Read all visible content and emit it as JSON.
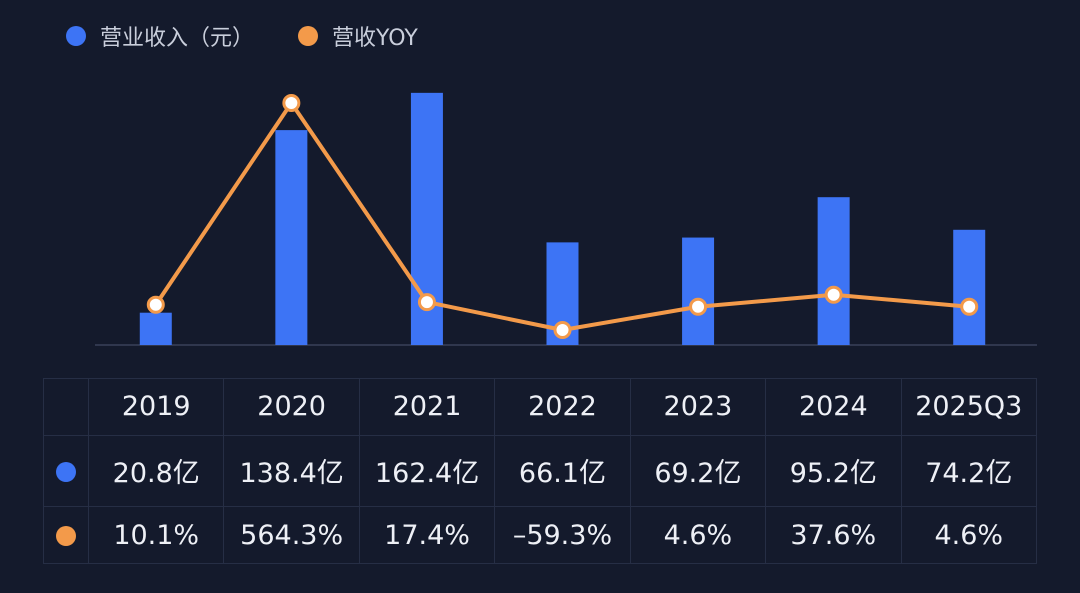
{
  "legend": {
    "revenue": "营业收入（元）",
    "yoy": "营收YOY"
  },
  "colors": {
    "background": "#141a2c",
    "revenue": "#3d74f5",
    "yoy": "#f39a4a",
    "grid": "#262e45"
  },
  "table": {
    "rows": [
      {
        "key": "revenue",
        "color": "#3d74f5",
        "cells": [
          "20.8亿",
          "138.4亿",
          "162.4亿",
          "66.1亿",
          "69.2亿",
          "95.2亿",
          "74.2亿"
        ]
      },
      {
        "key": "yoy",
        "color": "#f39a4a",
        "cells": [
          "10.1%",
          "564.3%",
          "17.4%",
          "–59.3%",
          "4.6%",
          "37.6%",
          "4.6%"
        ]
      }
    ]
  },
  "chart_data": {
    "type": "bar",
    "title": "",
    "categories": [
      "2019",
      "2020",
      "2021",
      "2022",
      "2023",
      "2024",
      "2025Q3"
    ],
    "series": [
      {
        "name": "营业收入（元）",
        "type": "bar",
        "unit": "亿",
        "values": [
          20.8,
          138.4,
          162.4,
          66.1,
          69.2,
          95.2,
          74.2
        ]
      },
      {
        "name": "营收YOY",
        "type": "line",
        "unit": "%",
        "values": [
          10.1,
          564.3,
          17.4,
          -59.3,
          4.6,
          37.6,
          4.6
        ]
      }
    ],
    "ylim_revenue": [
      0,
      190
    ],
    "ylim_yoy": [
      -120,
      640
    ],
    "grid": false,
    "legend_position": "top-left"
  }
}
